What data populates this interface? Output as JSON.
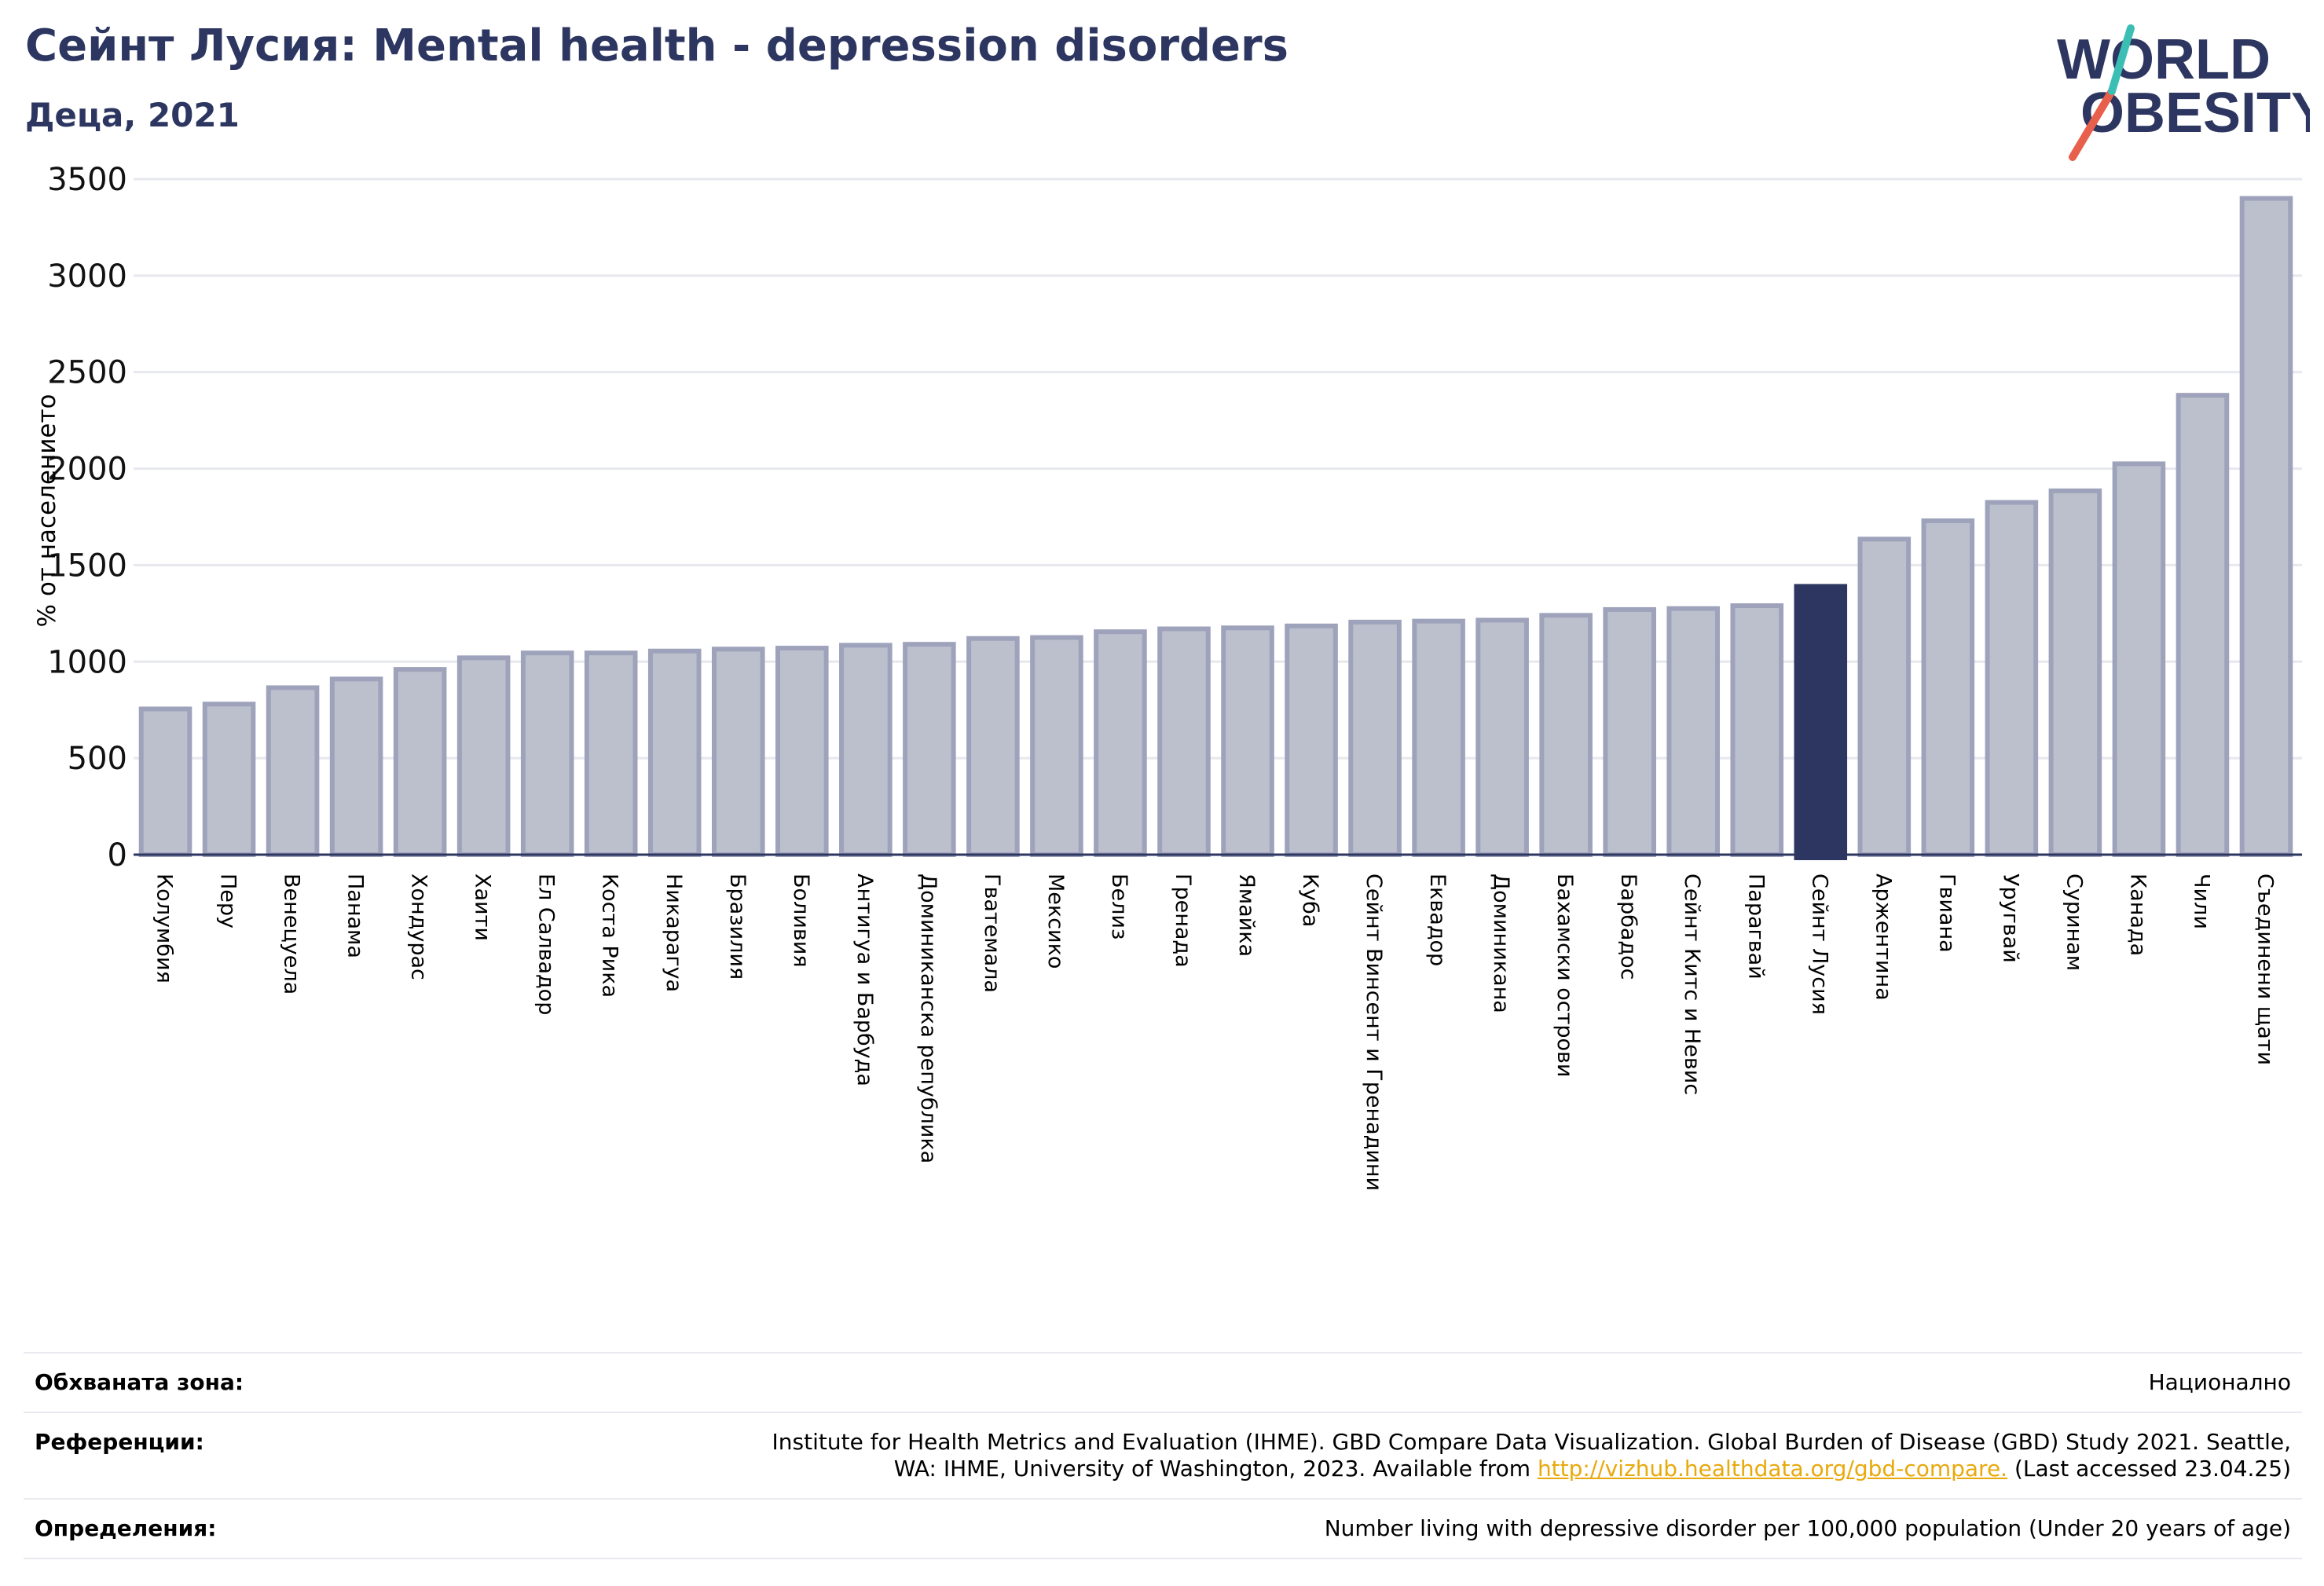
{
  "header": {
    "title": "Сейнт Лусия: Mental health - depression disorders",
    "subtitle": "Деца, 2021"
  },
  "logo": {
    "line1": "WORLD",
    "line2": "OBESITY",
    "colors": {
      "text": "#2c3660",
      "slash_red": "#e8604c",
      "slash_teal": "#3bbfb4"
    }
  },
  "chart_data": {
    "type": "bar",
    "ylabel": "% от населението",
    "ylim": [
      0,
      3500
    ],
    "yticks": [
      0,
      500,
      1000,
      1500,
      2000,
      2500,
      3000,
      3500
    ],
    "grid": true,
    "highlight": "Сейнт Лусия",
    "colors": {
      "bar": "#bcc0cd",
      "bar_edge": "#9ea3bb",
      "highlight": "#2c3660",
      "grid": "#e6e8ee"
    },
    "categories": [
      "Колумбия",
      "Перу",
      "Венецуела",
      "Панама",
      "Хондурас",
      "Хаити",
      "Ел Салвадор",
      "Коста Рика",
      "Никарагуа",
      "Бразилия",
      "Боливия",
      "Антигуа и Барбуда",
      "Доминиканска република",
      "Гватемала",
      "Мексико",
      "Белиз",
      "Гренада",
      "Ямайка",
      "Куба",
      "Сейнт Винсент и Гренадини",
      "Еквадор",
      "Доминикана",
      "Бахамски острови",
      "Барбадос",
      "Сейнт Китс и Невис",
      "Парагвай",
      "Сейнт Лусия",
      "Аржентина",
      "Гвиана",
      "Уругвай",
      "Суринам",
      "Канада",
      "Чили",
      "Съединени щати"
    ],
    "values": [
      755,
      780,
      865,
      910,
      960,
      1020,
      1045,
      1045,
      1055,
      1065,
      1070,
      1085,
      1090,
      1120,
      1125,
      1155,
      1170,
      1175,
      1185,
      1205,
      1210,
      1215,
      1240,
      1270,
      1275,
      1290,
      1390,
      1635,
      1730,
      1825,
      1885,
      2025,
      2380,
      3400
    ]
  },
  "footer": {
    "coverage_label": "Обхваната зона:",
    "coverage_value": "Национално",
    "references_label": "Референции:",
    "references_line1": "Institute for Health Metrics and Evaluation (IHME). GBD Compare Data Visualization. Global Burden of Disease (GBD) Study 2021. Seattle,",
    "references_line2_pre": "WA: IHME, University of Washington, 2023. Available from ",
    "references_link": "http://vizhub.healthdata.org/gbd-compare.",
    "references_line2_post": " (Last accessed 23.04.25)",
    "definitions_label": "Определения:",
    "definitions_value": "Number living with depressive disorder per 100,000 population (Under 20 years of age)"
  }
}
